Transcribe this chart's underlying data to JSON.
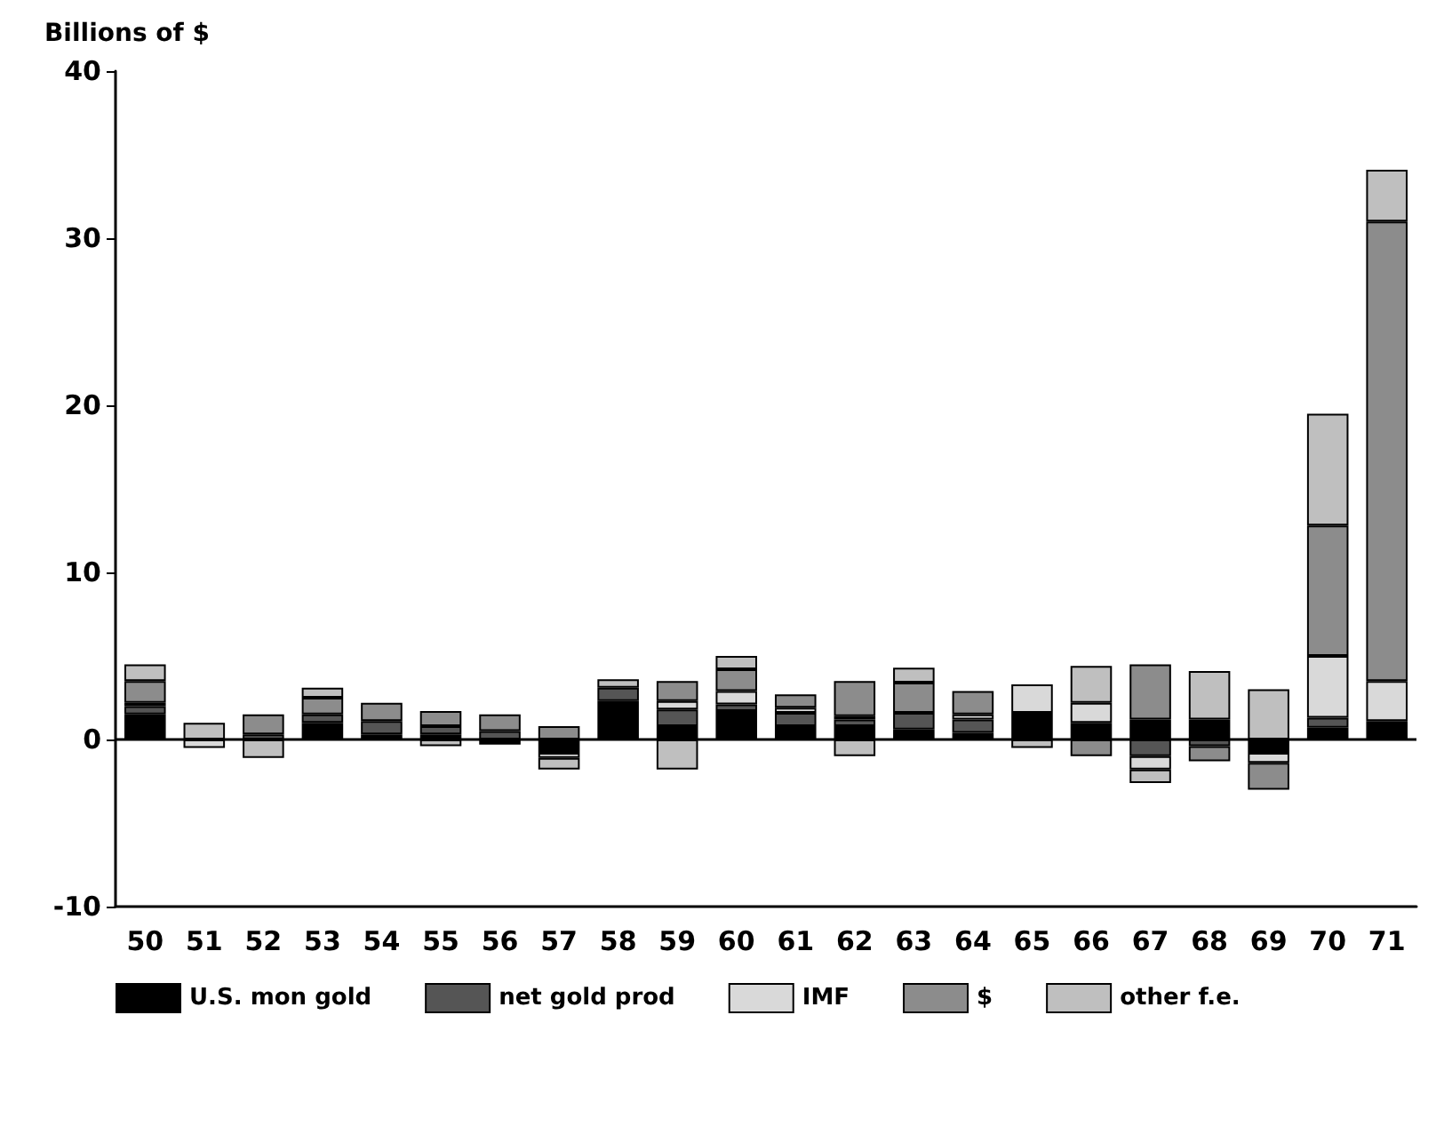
{
  "chart_data": {
    "type": "bar",
    "stacked": true,
    "ylabel": "Billions of $",
    "categories": [
      "50",
      "51",
      "52",
      "53",
      "54",
      "55",
      "56",
      "57",
      "58",
      "59",
      "60",
      "61",
      "62",
      "63",
      "64",
      "65",
      "66",
      "67",
      "68",
      "69",
      "70",
      "71"
    ],
    "series": [
      {
        "name": "U.S. mon gold",
        "color": "#000000",
        "values": [
          1.5,
          null,
          null,
          1.0,
          0.3,
          0.3,
          -0.3,
          -0.8,
          2.3,
          0.8,
          1.7,
          0.8,
          0.8,
          0.6,
          0.4,
          1.6,
          1.0,
          1.2,
          1.2,
          -0.8,
          0.7,
          1.1
        ]
      },
      {
        "name": "net gold prod",
        "color": "#555555",
        "values": [
          0.5,
          null,
          0.3,
          0.5,
          0.8,
          0.5,
          0.5,
          null,
          0.8,
          1.0,
          0.4,
          0.8,
          0.4,
          1.0,
          0.8,
          null,
          null,
          -1.0,
          -0.4,
          null,
          0.6,
          null
        ]
      },
      {
        "name": "IMF",
        "color": "#d9d9d9",
        "values": [
          0.2,
          -0.5,
          null,
          null,
          null,
          null,
          null,
          -0.3,
          null,
          0.5,
          0.8,
          0.3,
          0.2,
          null,
          0.3,
          1.7,
          1.2,
          -0.8,
          null,
          -0.6,
          3.7,
          2.4
        ]
      },
      {
        "name": "$",
        "color": "#8c8c8c",
        "values": [
          1.3,
          null,
          1.2,
          1.0,
          1.1,
          0.9,
          1.0,
          0.8,
          null,
          1.2,
          1.3,
          0.8,
          2.1,
          1.8,
          1.4,
          null,
          -1.0,
          3.3,
          -0.9,
          -1.6,
          7.8,
          27.5
        ]
      },
      {
        "name": "other f.e.",
        "color": "#bfbfbf",
        "values": [
          1.0,
          1.0,
          -1.1,
          0.6,
          null,
          -0.4,
          null,
          -0.7,
          0.5,
          -1.8,
          0.8,
          null,
          -1.0,
          0.9,
          null,
          -0.5,
          2.2,
          -0.8,
          2.9,
          3.0,
          6.7,
          3.1
        ]
      }
    ],
    "ylim": [
      -10,
      40
    ],
    "yticks": [
      -10,
      0,
      10,
      20,
      30,
      40
    ],
    "grid": false,
    "legend": "bottom",
    "ref_lines": [
      {
        "axis": "y",
        "value": 0
      }
    ]
  }
}
